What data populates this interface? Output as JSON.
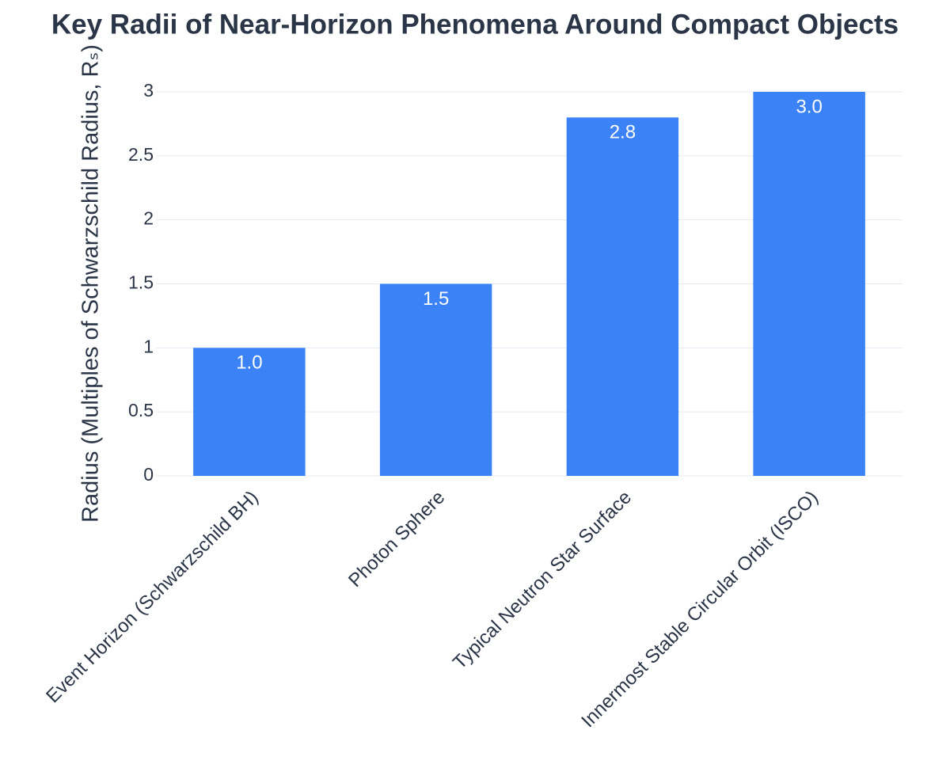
{
  "chart_data": {
    "type": "bar",
    "title": "Key Radii of Near-Horizon Phenomena Around Compact Objects",
    "y_label": "Radius (Multiples of Schwarzschild Radius, Rₛ)",
    "categories": [
      "Event Horizon (Schwarzschild BH)",
      "Photon Sphere",
      "Typical Neutron Star Surface",
      "Innermost Stable Circular Orbit (ISCO)"
    ],
    "values": [
      1,
      1.5,
      2.8,
      3
    ],
    "value_labels": [
      "1.0",
      "1.5",
      "2.8",
      "3.0"
    ],
    "color": "#3b82f6",
    "ylim": [
      0,
      3
    ],
    "yticks": [
      0,
      0.5,
      1,
      1.5,
      2,
      2.5,
      3
    ],
    "grid": true
  }
}
